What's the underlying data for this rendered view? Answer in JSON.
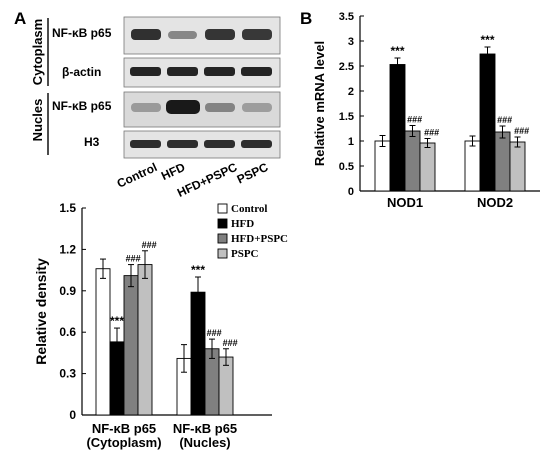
{
  "panel_labels": [
    "A",
    "B"
  ],
  "blot": {
    "group_labels": [
      {
        "text": "Cytoplasm",
        "rows": [
          "NF-κB p65",
          "β-actin"
        ]
      },
      {
        "text": "Nucles",
        "rows": [
          "NF-κB p65",
          "H3"
        ]
      }
    ],
    "lanes": [
      "Control",
      "HFD",
      "HFD+PSPC",
      "PSPC"
    ]
  },
  "chart_data": [
    {
      "type": "bar",
      "ylabel": "Relative density",
      "ylim": [
        0,
        1.5
      ],
      "yticks": [
        "0",
        "0.3",
        "0.6",
        "0.9",
        "1.2",
        "1.5"
      ],
      "tick_values": [
        0,
        0.3,
        0.6,
        0.9,
        1.2,
        1.5
      ],
      "categories": [
        "NF-κB p65\n(Cytoplasm)",
        "NF-κB p65\n(Nucles)"
      ],
      "legend_position": "top-right",
      "series": [
        {
          "name": "Control",
          "color": "#ffffff",
          "values": [
            1.06,
            0.41
          ],
          "errors": [
            0.07,
            0.1
          ],
          "annot": [
            "",
            ""
          ]
        },
        {
          "name": "HFD",
          "color": "#000000",
          "values": [
            0.53,
            0.89
          ],
          "errors": [
            0.1,
            0.11
          ],
          "annot": [
            "***",
            "***"
          ]
        },
        {
          "name": "HFD+PSPC",
          "color": "#808080",
          "values": [
            1.01,
            0.48
          ],
          "errors": [
            0.08,
            0.07
          ],
          "annot": [
            "###",
            "###"
          ]
        },
        {
          "name": "PSPC",
          "color": "#c0c0c0",
          "values": [
            1.09,
            0.42
          ],
          "errors": [
            0.1,
            0.06
          ],
          "annot": [
            "###",
            "###"
          ]
        }
      ]
    },
    {
      "type": "bar",
      "ylabel": "Relative mRNA level",
      "ylim": [
        0,
        3.5
      ],
      "yticks": [
        "0",
        "0.5",
        "1",
        "1.5",
        "2",
        "2.5",
        "3",
        "3.5"
      ],
      "tick_values": [
        0,
        0.5,
        1,
        1.5,
        2,
        2.5,
        3,
        3.5
      ],
      "categories": [
        "NOD1",
        "NOD2"
      ],
      "series": [
        {
          "name": "Control",
          "color": "#ffffff",
          "values": [
            1.0,
            1.0
          ],
          "errors": [
            0.11,
            0.1
          ],
          "annot": [
            "",
            ""
          ]
        },
        {
          "name": "HFD",
          "color": "#000000",
          "values": [
            2.53,
            2.74
          ],
          "errors": [
            0.13,
            0.14
          ],
          "annot": [
            "***",
            "***"
          ]
        },
        {
          "name": "HFD+PSPC",
          "color": "#808080",
          "values": [
            1.2,
            1.18
          ],
          "errors": [
            0.11,
            0.12
          ],
          "annot": [
            "###",
            "###"
          ]
        },
        {
          "name": "PSPC",
          "color": "#c0c0c0",
          "values": [
            0.96,
            0.98
          ],
          "errors": [
            0.09,
            0.1
          ],
          "annot": [
            "###",
            "###"
          ]
        }
      ]
    }
  ]
}
